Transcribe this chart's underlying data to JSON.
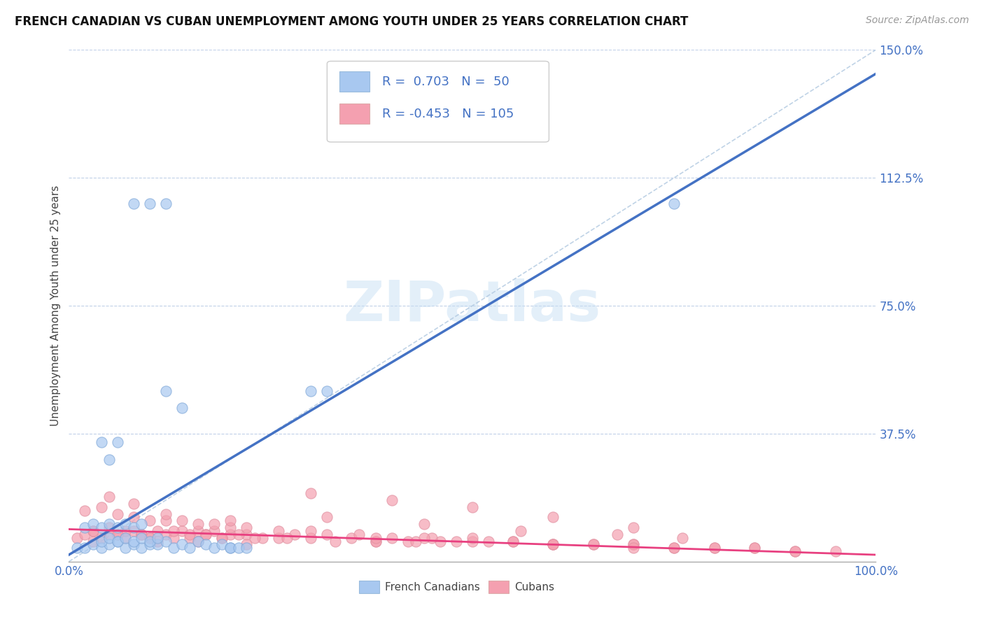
{
  "title": "FRENCH CANADIAN VS CUBAN UNEMPLOYMENT AMONG YOUTH UNDER 25 YEARS CORRELATION CHART",
  "source": "Source: ZipAtlas.com",
  "ylabel": "Unemployment Among Youth under 25 years",
  "watermark": "ZIPatlas",
  "legend_label_1": "French Canadians",
  "legend_label_2": "Cubans",
  "r1": 0.703,
  "n1": 50,
  "r2": -0.453,
  "n2": 105,
  "color_french": "#A8C8F0",
  "color_cuban": "#F4A0B0",
  "color_french_line": "#4472C4",
  "color_cuban_line": "#E84080",
  "color_diag_line": "#B0C8E0",
  "xlim": [
    0.0,
    1.0
  ],
  "ylim": [
    0.0,
    1.5
  ],
  "xtick_positions": [
    0.0,
    1.0
  ],
  "xticklabels": [
    "0.0%",
    "100.0%"
  ],
  "ytick_positions": [
    0.0,
    0.375,
    0.75,
    1.125,
    1.5
  ],
  "yticklabels": [
    "",
    "37.5%",
    "75.0%",
    "112.5%",
    "150.0%"
  ],
  "french_x": [
    0.01,
    0.02,
    0.03,
    0.04,
    0.05,
    0.06,
    0.07,
    0.08,
    0.09,
    0.1,
    0.11,
    0.12,
    0.13,
    0.14,
    0.15,
    0.16,
    0.17,
    0.18,
    0.19,
    0.2,
    0.12,
    0.14,
    0.3,
    0.32,
    0.08,
    0.1,
    0.12,
    0.75,
    0.04,
    0.05,
    0.06,
    0.07,
    0.08,
    0.09,
    0.1,
    0.11,
    0.02,
    0.03,
    0.04,
    0.05,
    0.06,
    0.07,
    0.08,
    0.09,
    0.2,
    0.21,
    0.22,
    0.04,
    0.05,
    0.06
  ],
  "french_y": [
    0.04,
    0.04,
    0.05,
    0.04,
    0.05,
    0.06,
    0.04,
    0.05,
    0.04,
    0.05,
    0.05,
    0.06,
    0.04,
    0.05,
    0.04,
    0.06,
    0.05,
    0.04,
    0.05,
    0.04,
    0.5,
    0.45,
    0.5,
    0.5,
    1.05,
    1.05,
    1.05,
    1.05,
    0.06,
    0.07,
    0.06,
    0.07,
    0.06,
    0.07,
    0.06,
    0.07,
    0.1,
    0.11,
    0.1,
    0.11,
    0.1,
    0.11,
    0.1,
    0.11,
    0.04,
    0.04,
    0.04,
    0.35,
    0.3,
    0.35
  ],
  "cuban_x": [
    0.01,
    0.02,
    0.03,
    0.04,
    0.05,
    0.06,
    0.07,
    0.08,
    0.09,
    0.1,
    0.11,
    0.12,
    0.13,
    0.14,
    0.15,
    0.16,
    0.17,
    0.18,
    0.19,
    0.2,
    0.22,
    0.24,
    0.26,
    0.28,
    0.3,
    0.35,
    0.38,
    0.42,
    0.46,
    0.5,
    0.55,
    0.6,
    0.65,
    0.7,
    0.75,
    0.8,
    0.85,
    0.9,
    0.95,
    0.02,
    0.04,
    0.06,
    0.08,
    0.1,
    0.12,
    0.14,
    0.16,
    0.18,
    0.2,
    0.22,
    0.26,
    0.32,
    0.36,
    0.4,
    0.45,
    0.5,
    0.55,
    0.6,
    0.65,
    0.7,
    0.75,
    0.8,
    0.85,
    0.9,
    0.03,
    0.05,
    0.07,
    0.09,
    0.11,
    0.13,
    0.15,
    0.17,
    0.19,
    0.21,
    0.23,
    0.27,
    0.33,
    0.38,
    0.43,
    0.48,
    0.3,
    0.4,
    0.5,
    0.6,
    0.7,
    0.32,
    0.44,
    0.56,
    0.68,
    0.76,
    0.05,
    0.08,
    0.12,
    0.2,
    0.3,
    0.38,
    0.44,
    0.52,
    0.6,
    0.7,
    0.03,
    0.06,
    0.1,
    0.16,
    0.22
  ],
  "cuban_y": [
    0.07,
    0.08,
    0.09,
    0.07,
    0.1,
    0.08,
    0.07,
    0.09,
    0.08,
    0.07,
    0.09,
    0.08,
    0.07,
    0.09,
    0.07,
    0.09,
    0.08,
    0.09,
    0.07,
    0.08,
    0.08,
    0.07,
    0.07,
    0.08,
    0.07,
    0.07,
    0.06,
    0.06,
    0.06,
    0.06,
    0.06,
    0.05,
    0.05,
    0.05,
    0.04,
    0.04,
    0.04,
    0.03,
    0.03,
    0.15,
    0.16,
    0.14,
    0.13,
    0.12,
    0.12,
    0.12,
    0.11,
    0.11,
    0.1,
    0.1,
    0.09,
    0.08,
    0.08,
    0.07,
    0.07,
    0.07,
    0.06,
    0.05,
    0.05,
    0.05,
    0.04,
    0.04,
    0.04,
    0.03,
    0.06,
    0.08,
    0.09,
    0.08,
    0.06,
    0.09,
    0.08,
    0.08,
    0.07,
    0.08,
    0.07,
    0.07,
    0.06,
    0.06,
    0.06,
    0.06,
    0.2,
    0.18,
    0.16,
    0.13,
    0.1,
    0.13,
    0.11,
    0.09,
    0.08,
    0.07,
    0.19,
    0.17,
    0.14,
    0.12,
    0.09,
    0.07,
    0.07,
    0.06,
    0.05,
    0.04,
    0.09,
    0.08,
    0.07,
    0.06,
    0.05
  ]
}
